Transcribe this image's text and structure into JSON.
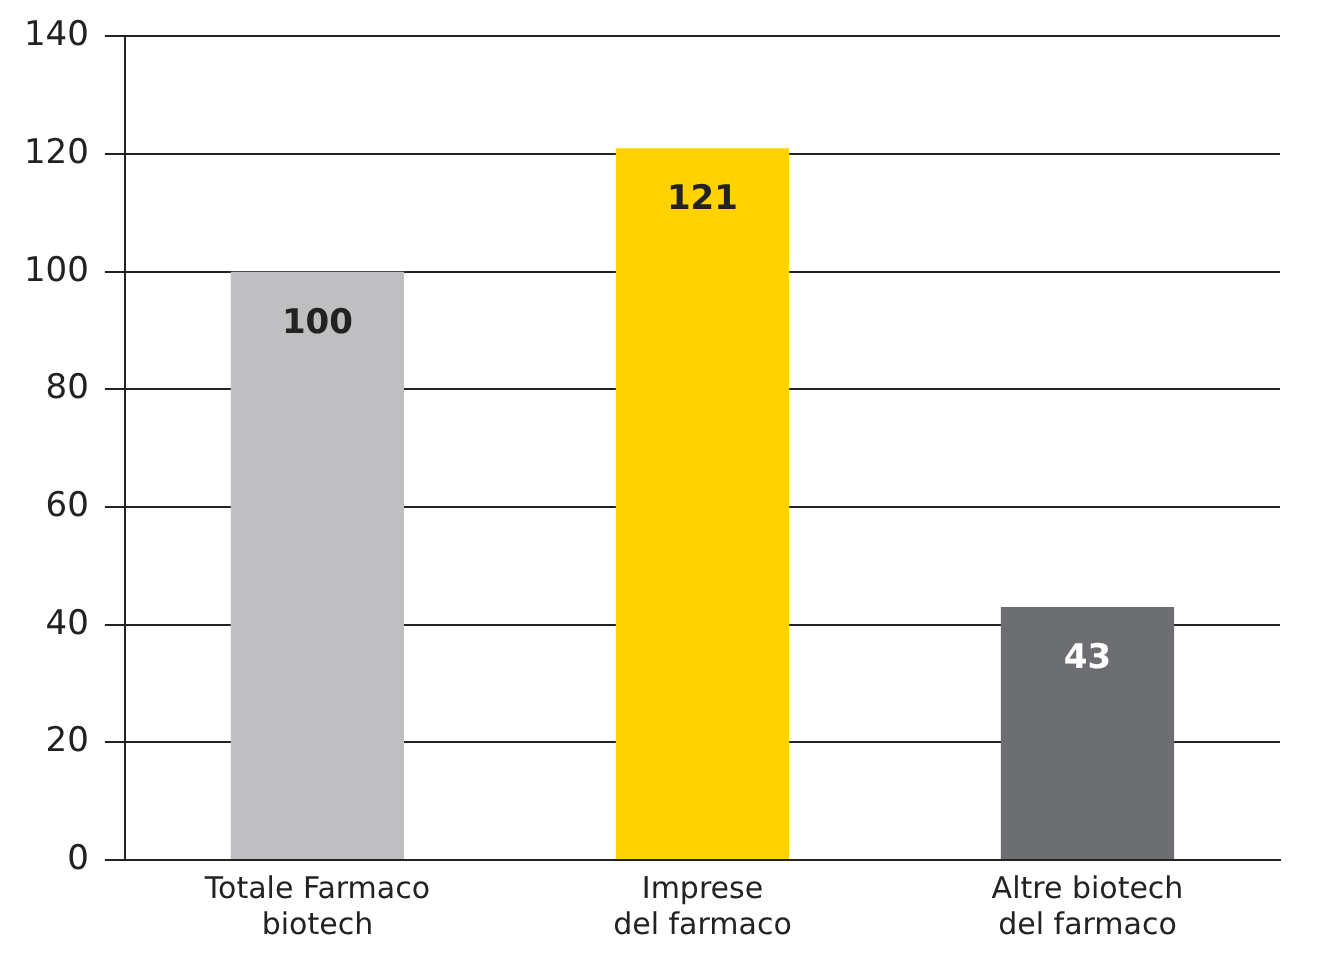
{
  "chart_data": {
    "type": "bar",
    "categories": [
      "Totale Farmaco\nbiotech",
      "Imprese\ndel farmaco",
      "Altre biotech\ndel farmaco"
    ],
    "values": [
      100,
      121,
      43
    ],
    "colors": [
      "#bfbfc1",
      "#ffd200",
      "#6d6e71"
    ],
    "ylim": [
      0,
      140
    ],
    "yticks": [
      0,
      20,
      40,
      60,
      80,
      100,
      120,
      140
    ],
    "grid": "y",
    "data_labels": true,
    "legend": false
  }
}
